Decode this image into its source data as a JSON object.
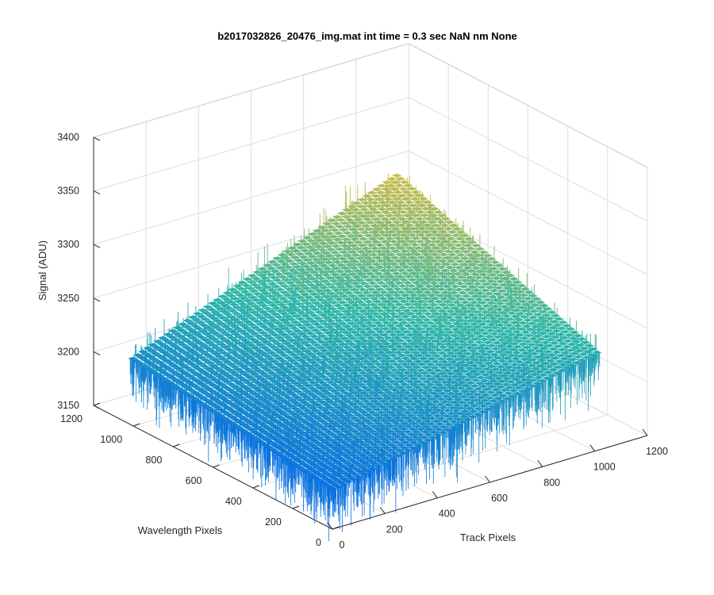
{
  "chart_data": {
    "type": "surface",
    "title": "b2017032826_20476_img.mat int time = 0.3 sec  NaN nm None",
    "xlabel": "Track Pixels",
    "ylabel": "Wavelength Pixels",
    "zlabel": "Signal (ADU)",
    "x_ticks": [
      "0",
      "200",
      "400",
      "600",
      "800",
      "1000",
      "1200"
    ],
    "y_ticks": [
      "0",
      "200",
      "400",
      "600",
      "800",
      "1000",
      "1200"
    ],
    "z_ticks": [
      "3150",
      "3200",
      "3250",
      "3300",
      "3350",
      "3400"
    ],
    "xlim": [
      0,
      1200
    ],
    "ylim": [
      0,
      1200
    ],
    "zlim": [
      3150,
      3400
    ],
    "grid": true,
    "colormap": "parula",
    "surface": {
      "x_range": [
        0,
        1024
      ],
      "y_range": [
        0,
        1024
      ],
      "corner_signal": {
        "x0_y0": 3185,
        "x1024_y0": 3240,
        "x0_y1024": 3210,
        "x1024_y1024": 3310
      },
      "noise_amplitude": 25
    },
    "colors": {
      "low": "#0a72de",
      "mid": "#2fb8a8",
      "high": "#d2bd4a"
    }
  }
}
